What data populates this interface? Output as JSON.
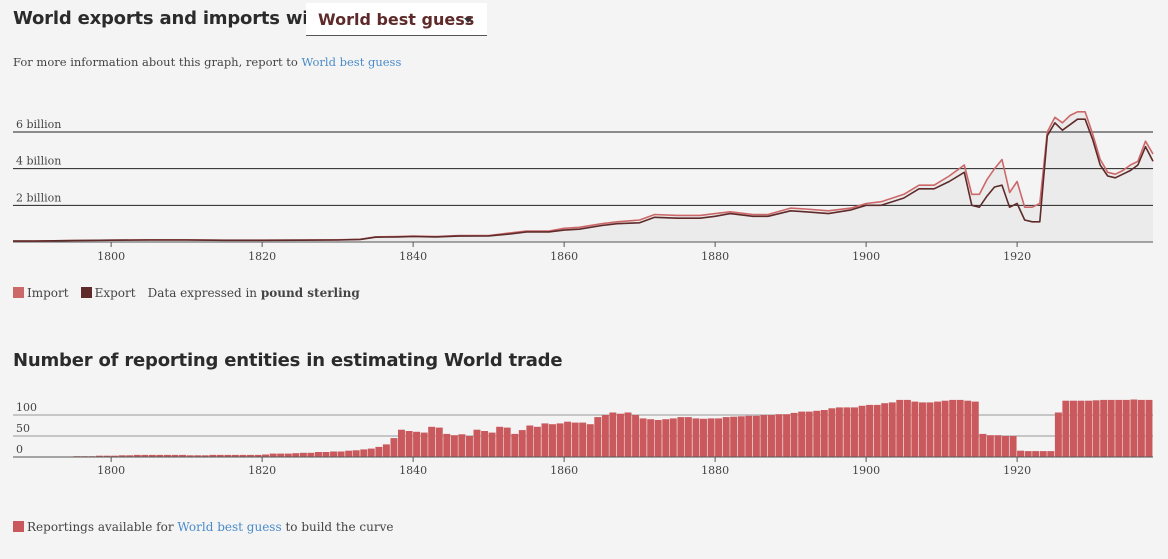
{
  "header": {
    "title": "World exports and imports with",
    "dropdown_value": "World best guess",
    "info_prefix": "For more information about this graph, report to",
    "info_link": "World best guess"
  },
  "legend1": {
    "import_label": "Import",
    "export_label": "Export",
    "note_prefix": "Data expressed in",
    "note_unit": "pound sterling"
  },
  "section2": {
    "title": "Number of reporting entities in estimating World trade",
    "legend_label": "Reportings available for",
    "legend_link": "World best guess",
    "legend_suffix": "to build the curve"
  },
  "colors": {
    "import": "#cd6869",
    "export": "#5e2a2a",
    "bar": "#c9595c",
    "area": "#ebebeb"
  },
  "chart_data": [
    {
      "type": "line",
      "unit": "pound sterling",
      "y_ticks": [
        {
          "value": 2000000000,
          "label": "2 billion"
        },
        {
          "value": 4000000000,
          "label": "4 billion"
        },
        {
          "value": 6000000000,
          "label": "6 billion"
        }
      ],
      "x_ticks": [
        1800,
        1820,
        1840,
        1860,
        1880,
        1900,
        1920
      ],
      "xlim": [
        1787,
        1938
      ],
      "ylim": [
        0,
        7000000000
      ],
      "grid": true,
      "legend_position": "bottom-left",
      "series": [
        {
          "name": "Import",
          "color": "#cd6869",
          "x": [
            1787,
            1790,
            1795,
            1800,
            1805,
            1810,
            1815,
            1820,
            1825,
            1830,
            1833,
            1835,
            1838,
            1840,
            1843,
            1846,
            1850,
            1853,
            1855,
            1858,
            1860,
            1862,
            1865,
            1867,
            1870,
            1872,
            1875,
            1878,
            1880,
            1882,
            1885,
            1887,
            1890,
            1892,
            1895,
            1898,
            1900,
            1902,
            1905,
            1907,
            1909,
            1911,
            1913,
            1914,
            1915,
            1916,
            1917,
            1918,
            1919,
            1920,
            1921,
            1922,
            1923,
            1924,
            1925,
            1926,
            1927,
            1928,
            1929,
            1930,
            1931,
            1932,
            1933,
            1934,
            1935,
            1936,
            1937,
            1938
          ],
          "y": [
            50000000.0,
            50000000.0,
            80000000.0,
            100000000.0,
            120000000.0,
            120000000.0,
            100000000.0,
            100000000.0,
            110000000.0,
            120000000.0,
            150000000.0,
            280000000.0,
            300000000.0,
            320000000.0,
            300000000.0,
            350000000.0,
            350000000.0,
            500000000.0,
            600000000.0,
            600000000.0,
            750000000.0,
            800000000.0,
            1000000000.0,
            1100000000.0,
            1200000000.0,
            1500000000.0,
            1450000000.0,
            1450000000.0,
            1550000000.0,
            1650000000.0,
            1500000000.0,
            1500000000.0,
            1850000000.0,
            1800000000.0,
            1700000000.0,
            1850000000.0,
            2100000000.0,
            2200000000.0,
            2600000000.0,
            3100000000.0,
            3100000000.0,
            3600000000.0,
            4200000000.0,
            2600000000.0,
            2600000000.0,
            3400000000.0,
            4000000000.0,
            4500000000.0,
            2700000000.0,
            3300000000.0,
            1900000000.0,
            1900000000.0,
            2100000000.0,
            6000000000.0,
            6800000000.0,
            6500000000.0,
            6900000000.0,
            7100000000.0,
            7100000000.0,
            5900000000.0,
            4500000000.0,
            3800000000.0,
            3700000000.0,
            3900000000.0,
            4200000000.0,
            4400000000.0,
            5500000000.0,
            4800000000.0
          ]
        },
        {
          "name": "Export",
          "color": "#5e2a2a",
          "x": [
            1787,
            1790,
            1795,
            1800,
            1805,
            1810,
            1815,
            1820,
            1825,
            1830,
            1833,
            1835,
            1838,
            1840,
            1843,
            1846,
            1850,
            1853,
            1855,
            1858,
            1860,
            1862,
            1865,
            1867,
            1870,
            1872,
            1875,
            1878,
            1880,
            1882,
            1885,
            1887,
            1890,
            1892,
            1895,
            1898,
            1900,
            1902,
            1905,
            1907,
            1909,
            1911,
            1913,
            1914,
            1915,
            1916,
            1917,
            1918,
            1919,
            1920,
            1921,
            1922,
            1923,
            1924,
            1925,
            1926,
            1927,
            1928,
            1929,
            1930,
            1931,
            1932,
            1933,
            1934,
            1935,
            1936,
            1937,
            1938
          ],
          "y": [
            50000000.0,
            50000000.0,
            80000000.0,
            100000000.0,
            110000000.0,
            110000000.0,
            90000000.0,
            90000000.0,
            100000000.0,
            110000000.0,
            140000000.0,
            260000000.0,
            280000000.0,
            300000000.0,
            280000000.0,
            320000000.0,
            330000000.0,
            450000000.0,
            550000000.0,
            550000000.0,
            650000000.0,
            700000000.0,
            900000000.0,
            1000000000.0,
            1050000000.0,
            1350000000.0,
            1300000000.0,
            1300000000.0,
            1400000000.0,
            1550000000.0,
            1400000000.0,
            1400000000.0,
            1700000000.0,
            1650000000.0,
            1550000000.0,
            1750000000.0,
            2000000000.0,
            2000000000.0,
            2400000000.0,
            2900000000.0,
            2900000000.0,
            3300000000.0,
            3800000000.0,
            2000000000.0,
            1900000000.0,
            2500000000.0,
            3000000000.0,
            3100000000.0,
            1900000000.0,
            2100000000.0,
            1200000000.0,
            1100000000.0,
            1100000000.0,
            5800000000.0,
            6500000000.0,
            6100000000.0,
            6400000000.0,
            6700000000.0,
            6700000000.0,
            5600000000.0,
            4200000000.0,
            3600000000.0,
            3500000000.0,
            3700000000.0,
            3900000000.0,
            4200000000.0,
            5200000000.0,
            4400000000.0
          ]
        }
      ]
    },
    {
      "type": "bar",
      "y_ticks": [
        0,
        50,
        100
      ],
      "x_ticks": [
        1800,
        1820,
        1840,
        1860,
        1880,
        1900,
        1920
      ],
      "xlim": [
        1787,
        1938
      ],
      "ylim": [
        0,
        140
      ],
      "grid": true,
      "legend_position": "bottom-left",
      "series": [
        {
          "name": "Reportings available for World best guess",
          "color": "#c9595c",
          "x": [
            1787,
            1788,
            1789,
            1790,
            1791,
            1792,
            1793,
            1794,
            1795,
            1796,
            1797,
            1798,
            1799,
            1800,
            1801,
            1802,
            1803,
            1804,
            1805,
            1806,
            1807,
            1808,
            1809,
            1810,
            1811,
            1812,
            1813,
            1814,
            1815,
            1816,
            1817,
            1818,
            1819,
            1820,
            1821,
            1822,
            1823,
            1824,
            1825,
            1826,
            1827,
            1828,
            1829,
            1830,
            1831,
            1832,
            1833,
            1834,
            1835,
            1836,
            1837,
            1838,
            1839,
            1840,
            1841,
            1842,
            1843,
            1844,
            1845,
            1846,
            1847,
            1848,
            1849,
            1850,
            1851,
            1852,
            1853,
            1854,
            1855,
            1856,
            1857,
            1858,
            1859,
            1860,
            1861,
            1862,
            1863,
            1864,
            1865,
            1866,
            1867,
            1868,
            1869,
            1870,
            1871,
            1872,
            1873,
            1874,
            1875,
            1876,
            1877,
            1878,
            1879,
            1880,
            1881,
            1882,
            1883,
            1884,
            1885,
            1886,
            1887,
            1888,
            1889,
            1890,
            1891,
            1892,
            1893,
            1894,
            1895,
            1896,
            1897,
            1898,
            1899,
            1900,
            1901,
            1902,
            1903,
            1904,
            1905,
            1906,
            1907,
            1908,
            1909,
            1910,
            1911,
            1912,
            1913,
            1914,
            1915,
            1916,
            1917,
            1918,
            1919,
            1920,
            1921,
            1922,
            1923,
            1924,
            1925,
            1926,
            1927,
            1928,
            1929,
            1930,
            1931,
            1932,
            1933,
            1934,
            1935,
            1936,
            1937
          ],
          "y": [
            0,
            0,
            0,
            0,
            0,
            0,
            1,
            1,
            2,
            2,
            2,
            3,
            3,
            3,
            4,
            4,
            5,
            5,
            5,
            5,
            5,
            5,
            5,
            4,
            4,
            4,
            5,
            5,
            5,
            5,
            5,
            5,
            5,
            6,
            8,
            8,
            8,
            9,
            10,
            10,
            12,
            12,
            13,
            13,
            15,
            16,
            18,
            20,
            24,
            30,
            45,
            65,
            62,
            60,
            58,
            72,
            70,
            55,
            52,
            54,
            50,
            65,
            62,
            58,
            72,
            70,
            55,
            64,
            75,
            72,
            80,
            78,
            80,
            84,
            82,
            82,
            78,
            95,
            100,
            106,
            103,
            106,
            100,
            92,
            90,
            88,
            90,
            92,
            95,
            95,
            92,
            91,
            92,
            92,
            95,
            96,
            97,
            98,
            98,
            100,
            100,
            102,
            102,
            105,
            108,
            108,
            110,
            112,
            116,
            118,
            118,
            118,
            122,
            124,
            124,
            128,
            130,
            136,
            136,
            132,
            130,
            130,
            132,
            134,
            136,
            136,
            134,
            132,
            55,
            52,
            52,
            50,
            50,
            15,
            14,
            14,
            14,
            14,
            106,
            134,
            134,
            134,
            134,
            135,
            136,
            136,
            136,
            136,
            137,
            136,
            136
          ]
        }
      ]
    }
  ]
}
